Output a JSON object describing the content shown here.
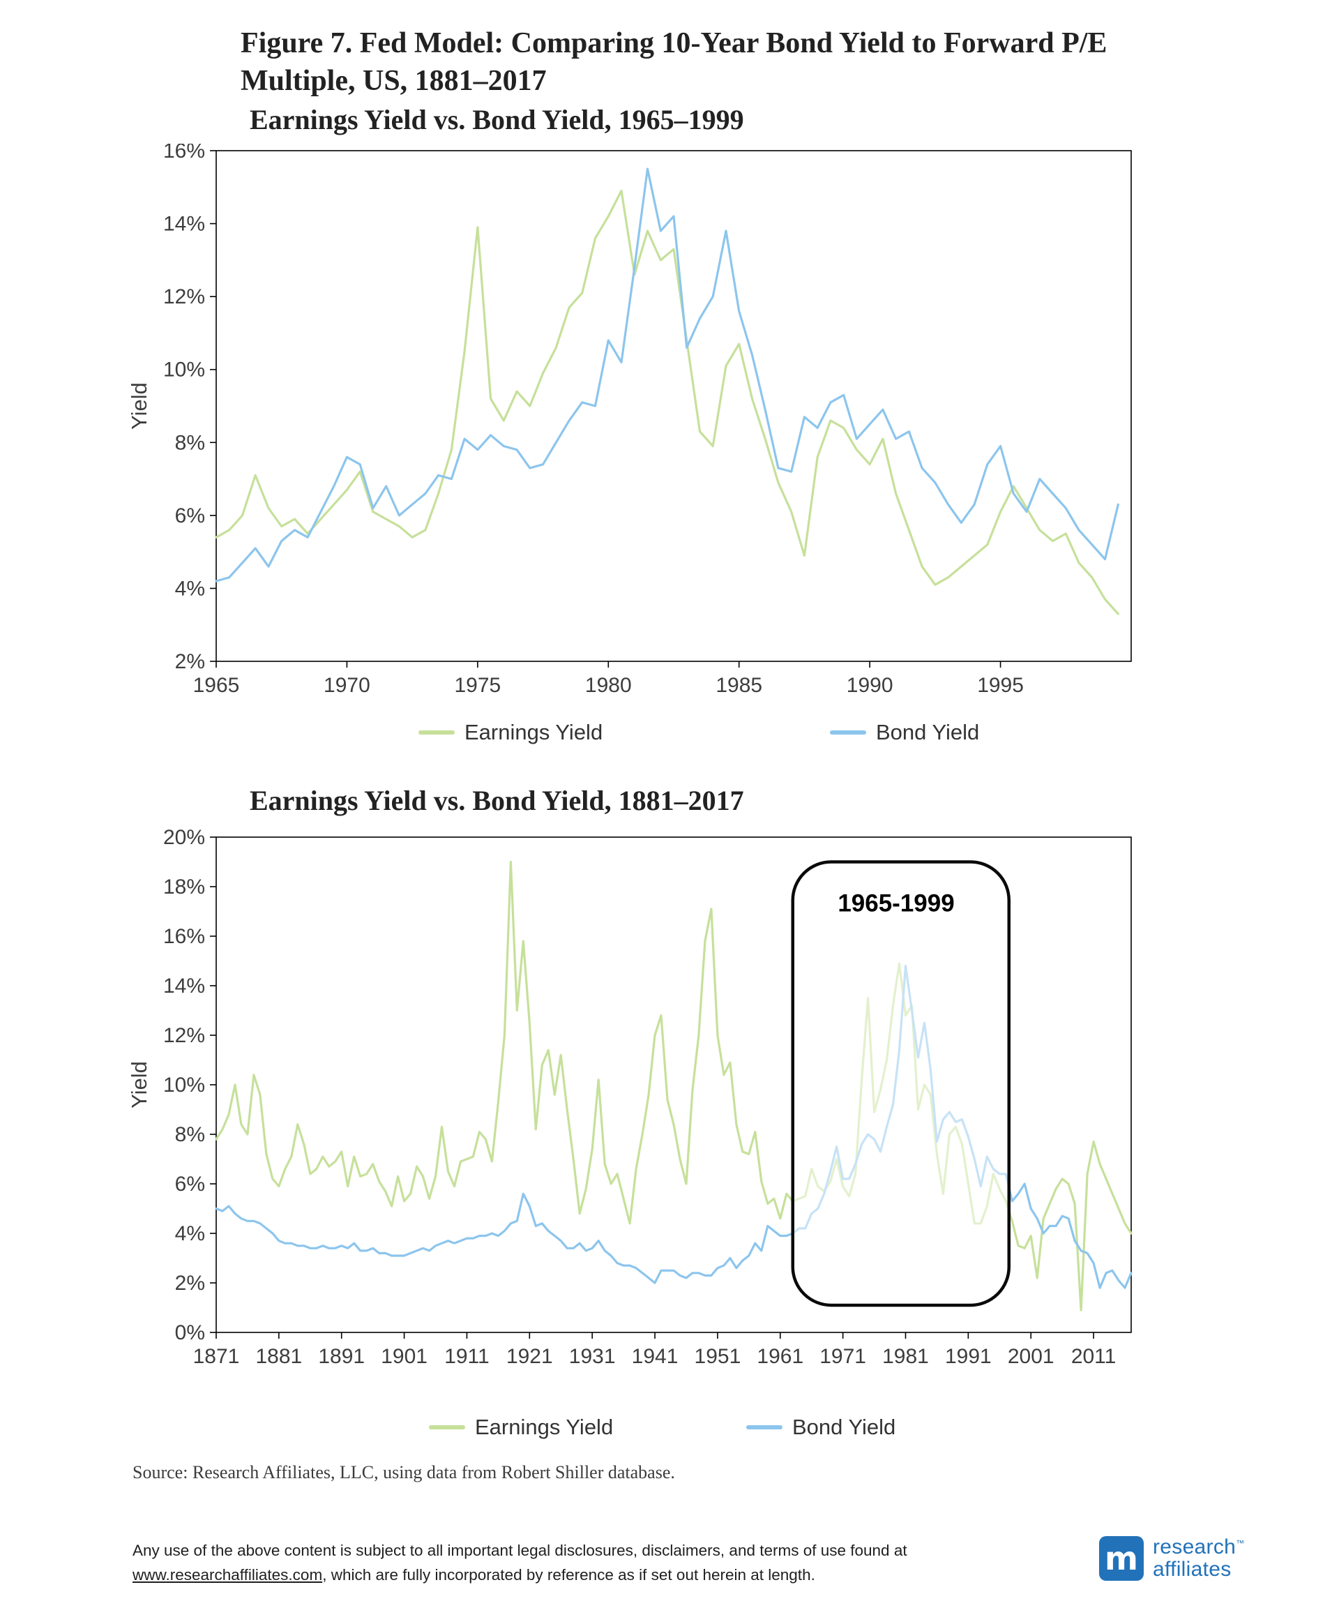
{
  "figure": {
    "title": "Figure 7. Fed Model: Comparing 10-Year Bond Yield to Forward P/E Multiple, US, 1881–2017"
  },
  "colors": {
    "earnings_yield": "#C6E09A",
    "bond_yield": "#8CC5ED"
  },
  "source_note": "Source:  Research Affiliates, LLC, using data from Robert Shiller database.",
  "footer": {
    "disclaimer_before_link": "Any use of the above content is subject to all important legal disclosures, disclaimers, and terms of use found at ",
    "link_text": "www.researchaffiliates.com",
    "disclaimer_after_link": ", which are fully incorporated by reference as if set out herein at length.",
    "logo": {
      "line1": "research",
      "trademark": "™",
      "line2": "affiliates",
      "icon_letter": "m"
    }
  },
  "chart_data": [
    {
      "type": "line",
      "title": "Earnings Yield vs. Bond Yield, 1965–1999",
      "xlabel": "",
      "ylabel": "Yield",
      "xlim": [
        1965,
        2000
      ],
      "ylim": [
        2,
        16
      ],
      "grid": false,
      "legend_position": "bottom",
      "yticks": [
        {
          "v": 2,
          "label": "2%"
        },
        {
          "v": 4,
          "label": "4%"
        },
        {
          "v": 6,
          "label": "6%"
        },
        {
          "v": 8,
          "label": "8%"
        },
        {
          "v": 10,
          "label": "10%"
        },
        {
          "v": 12,
          "label": "12%"
        },
        {
          "v": 14,
          "label": "14%"
        },
        {
          "v": 16,
          "label": "16%"
        }
      ],
      "xticks": [
        {
          "v": 1965,
          "label": "1965"
        },
        {
          "v": 1970,
          "label": "1970"
        },
        {
          "v": 1975,
          "label": "1975"
        },
        {
          "v": 1980,
          "label": "1980"
        },
        {
          "v": 1985,
          "label": "1985"
        },
        {
          "v": 1990,
          "label": "1990"
        },
        {
          "v": 1995,
          "label": "1995"
        }
      ],
      "series": [
        {
          "name": "Earnings Yield",
          "color_key": "earnings_yield",
          "x_start": 1965.0,
          "x_step": 0.5,
          "values": [
            5.4,
            5.6,
            6.0,
            7.1,
            6.2,
            5.7,
            5.9,
            5.5,
            5.9,
            6.3,
            6.7,
            7.2,
            6.1,
            5.9,
            5.7,
            5.4,
            5.6,
            6.6,
            7.8,
            10.5,
            13.9,
            9.2,
            8.6,
            9.4,
            9.0,
            9.9,
            10.6,
            11.7,
            12.1,
            13.6,
            14.2,
            14.9,
            12.6,
            13.8,
            13.0,
            13.3,
            10.8,
            8.3,
            7.9,
            10.1,
            10.7,
            9.2,
            8.1,
            6.9,
            6.1,
            4.9,
            7.6,
            8.6,
            8.4,
            7.8,
            7.4,
            8.1,
            6.6,
            5.6,
            4.6,
            4.1,
            4.3,
            4.6,
            4.9,
            5.2,
            6.1,
            6.8,
            6.2,
            5.6,
            5.3,
            5.5,
            4.7,
            4.3,
            3.7,
            3.3
          ]
        },
        {
          "name": "Bond Yield",
          "color_key": "bond_yield",
          "x_start": 1965.0,
          "x_step": 0.5,
          "values": [
            4.2,
            4.3,
            4.7,
            5.1,
            4.6,
            5.3,
            5.6,
            5.4,
            6.1,
            6.8,
            7.6,
            7.4,
            6.2,
            6.8,
            6.0,
            6.3,
            6.6,
            7.1,
            7.0,
            8.1,
            7.8,
            8.2,
            7.9,
            7.8,
            7.3,
            7.4,
            8.0,
            8.6,
            9.1,
            9.0,
            10.8,
            10.2,
            12.8,
            15.5,
            13.8,
            14.2,
            10.6,
            11.4,
            12.0,
            13.8,
            11.6,
            10.4,
            8.9,
            7.3,
            7.2,
            8.7,
            8.4,
            9.1,
            9.3,
            8.1,
            8.5,
            8.9,
            8.1,
            8.3,
            7.3,
            6.9,
            6.3,
            5.8,
            6.3,
            7.4,
            7.9,
            6.6,
            6.1,
            7.0,
            6.6,
            6.2,
            5.6,
            5.2,
            4.8,
            6.3
          ]
        }
      ]
    },
    {
      "type": "line",
      "title": "Earnings Yield vs. Bond Yield, 1881–2017",
      "xlabel": "",
      "ylabel": "Yield",
      "xlim": [
        1871,
        2017
      ],
      "ylim": [
        0,
        20
      ],
      "grid": false,
      "legend_position": "bottom",
      "yticks": [
        {
          "v": 0,
          "label": "0%"
        },
        {
          "v": 2,
          "label": "2%"
        },
        {
          "v": 4,
          "label": "4%"
        },
        {
          "v": 6,
          "label": "6%"
        },
        {
          "v": 8,
          "label": "8%"
        },
        {
          "v": 10,
          "label": "10%"
        },
        {
          "v": 12,
          "label": "12%"
        },
        {
          "v": 14,
          "label": "14%"
        },
        {
          "v": 16,
          "label": "16%"
        },
        {
          "v": 18,
          "label": "18%"
        },
        {
          "v": 20,
          "label": "20%"
        }
      ],
      "xticks": [
        {
          "v": 1871,
          "label": "1871"
        },
        {
          "v": 1881,
          "label": "1881"
        },
        {
          "v": 1891,
          "label": "1891"
        },
        {
          "v": 1901,
          "label": "1901"
        },
        {
          "v": 1911,
          "label": "1911"
        },
        {
          "v": 1921,
          "label": "1921"
        },
        {
          "v": 1931,
          "label": "1931"
        },
        {
          "v": 1941,
          "label": "1941"
        },
        {
          "v": 1951,
          "label": "1951"
        },
        {
          "v": 1961,
          "label": "1961"
        },
        {
          "v": 1971,
          "label": "1971"
        },
        {
          "v": 1981,
          "label": "1981"
        },
        {
          "v": 1991,
          "label": "1991"
        },
        {
          "v": 2001,
          "label": "2001"
        },
        {
          "v": 2011,
          "label": "2011"
        }
      ],
      "annotation": {
        "label": "1965-1999",
        "x_from": 1963,
        "x_to": 1997.5,
        "y_from": 1.1,
        "y_to": 19.0,
        "label_x": 1979.5,
        "label_y": 17.0
      },
      "series": [
        {
          "name": "Earnings Yield",
          "color_key": "earnings_yield",
          "x_start": 1871,
          "x_step": 1,
          "values": [
            7.8,
            8.2,
            8.8,
            10.0,
            8.4,
            8.0,
            10.4,
            9.6,
            7.2,
            6.2,
            5.9,
            6.6,
            7.1,
            8.4,
            7.6,
            6.4,
            6.6,
            7.1,
            6.7,
            6.9,
            7.3,
            5.9,
            7.1,
            6.3,
            6.4,
            6.8,
            6.1,
            5.7,
            5.1,
            6.3,
            5.3,
            5.6,
            6.7,
            6.3,
            5.4,
            6.3,
            8.3,
            6.5,
            5.9,
            6.9,
            7.0,
            7.1,
            8.1,
            7.8,
            6.9,
            9.3,
            12.0,
            19.0,
            13.0,
            15.8,
            12.5,
            8.2,
            10.8,
            11.4,
            9.6,
            11.2,
            9.0,
            7.0,
            4.8,
            5.8,
            7.4,
            10.2,
            6.8,
            6.0,
            6.4,
            5.4,
            4.4,
            6.6,
            8.0,
            9.6,
            12.0,
            12.8,
            9.4,
            8.4,
            7.0,
            6.0,
            9.8,
            12.0,
            15.8,
            17.1,
            12.0,
            10.4,
            10.9,
            8.4,
            7.3,
            7.2,
            8.1,
            6.1,
            5.2,
            5.4,
            4.6,
            5.6,
            5.3,
            5.4,
            5.5,
            6.6,
            5.9,
            5.7,
            6.1,
            7.0,
            5.9,
            5.5,
            6.4,
            10.2,
            13.5,
            8.9,
            9.8,
            11.0,
            13.2,
            14.9,
            12.8,
            13.2,
            9.0,
            10.0,
            9.6,
            7.2,
            5.6,
            8.0,
            8.3,
            7.6,
            6.0,
            4.4,
            4.4,
            5.1,
            6.4,
            5.8,
            5.3,
            4.5,
            3.5,
            3.4,
            3.9,
            2.2,
            4.6,
            5.2,
            5.8,
            6.2,
            6.0,
            5.2,
            0.9,
            6.4,
            7.7,
            6.8,
            6.2,
            5.6,
            5.0,
            4.4,
            4.0
          ]
        },
        {
          "name": "Bond Yield",
          "color_key": "bond_yield",
          "x_start": 1871,
          "x_step": 1,
          "values": [
            5.0,
            4.9,
            5.1,
            4.8,
            4.6,
            4.5,
            4.5,
            4.4,
            4.2,
            4.0,
            3.7,
            3.6,
            3.6,
            3.5,
            3.5,
            3.4,
            3.4,
            3.5,
            3.4,
            3.4,
            3.5,
            3.4,
            3.6,
            3.3,
            3.3,
            3.4,
            3.2,
            3.2,
            3.1,
            3.1,
            3.1,
            3.2,
            3.3,
            3.4,
            3.3,
            3.5,
            3.6,
            3.7,
            3.6,
            3.7,
            3.8,
            3.8,
            3.9,
            3.9,
            4.0,
            3.9,
            4.1,
            4.4,
            4.5,
            5.6,
            5.1,
            4.3,
            4.4,
            4.1,
            3.9,
            3.7,
            3.4,
            3.4,
            3.6,
            3.3,
            3.4,
            3.7,
            3.3,
            3.1,
            2.8,
            2.7,
            2.7,
            2.6,
            2.4,
            2.2,
            2.0,
            2.5,
            2.5,
            2.5,
            2.3,
            2.2,
            2.4,
            2.4,
            2.3,
            2.3,
            2.6,
            2.7,
            3.0,
            2.6,
            2.9,
            3.1,
            3.6,
            3.3,
            4.3,
            4.1,
            3.9,
            3.9,
            4.0,
            4.2,
            4.2,
            4.8,
            5.0,
            5.6,
            6.5,
            7.5,
            6.2,
            6.2,
            6.8,
            7.6,
            8.0,
            7.8,
            7.3,
            8.3,
            9.2,
            11.4,
            14.8,
            13.0,
            11.1,
            12.5,
            10.6,
            7.7,
            8.6,
            8.9,
            8.5,
            8.6,
            7.9,
            7.0,
            5.9,
            7.1,
            6.6,
            6.4,
            6.4,
            5.3,
            5.6,
            6.0,
            5.0,
            4.6,
            4.0,
            4.3,
            4.3,
            4.7,
            4.6,
            3.7,
            3.3,
            3.2,
            2.8,
            1.8,
            2.4,
            2.5,
            2.1,
            1.8,
            2.4
          ]
        }
      ]
    }
  ]
}
